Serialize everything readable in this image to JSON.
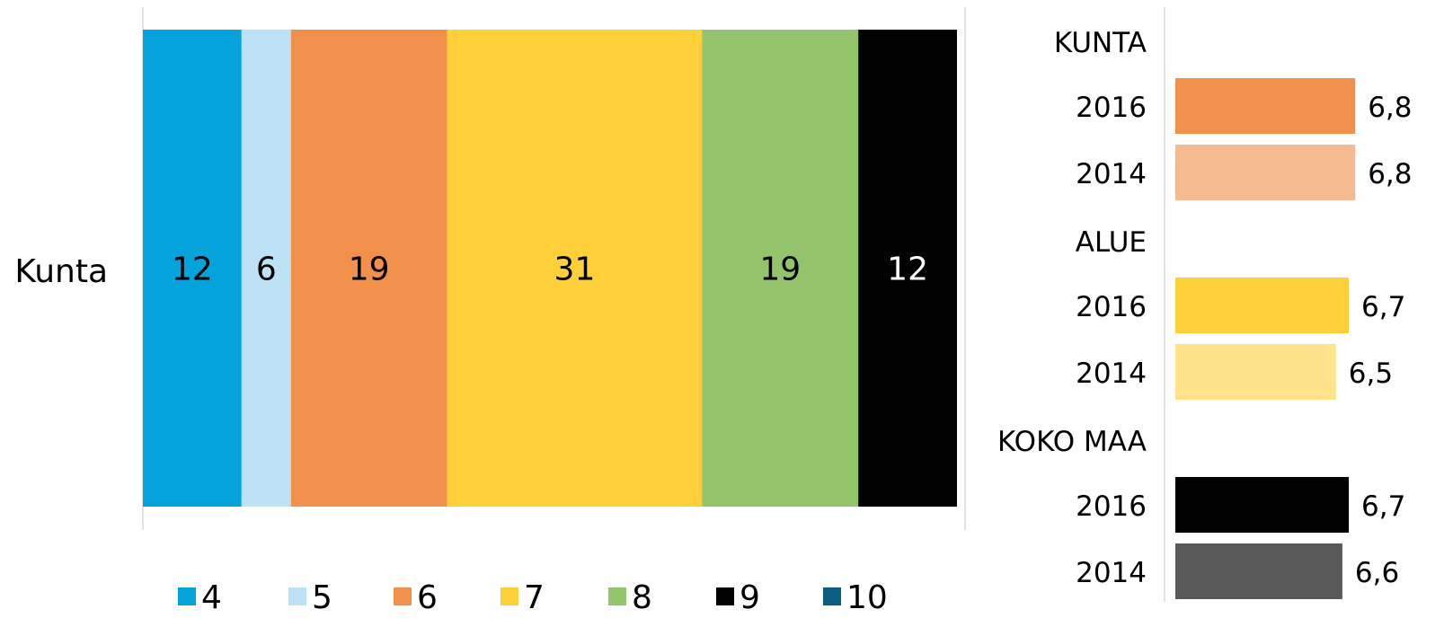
{
  "chart_data": [
    {
      "type": "bar",
      "orientation": "horizontal",
      "stacked": true,
      "categories": [
        "Kunta"
      ],
      "series": [
        {
          "name": "4",
          "values": [
            12
          ],
          "color": "#05A3DB"
        },
        {
          "name": "5",
          "values": [
            6
          ],
          "color": "#BEE2F5"
        },
        {
          "name": "6",
          "values": [
            19
          ],
          "color": "#F0904A"
        },
        {
          "name": "7",
          "values": [
            31
          ],
          "color": "#FDD03A"
        },
        {
          "name": "8",
          "values": [
            19
          ],
          "color": "#93C36B"
        },
        {
          "name": "9",
          "values": [
            12
          ],
          "color": "#000000"
        },
        {
          "name": "10",
          "values": [
            0
          ],
          "color": "#0A6083"
        }
      ],
      "xlim": [
        0,
        100
      ],
      "legend_position": "bottom",
      "grid": false
    },
    {
      "type": "bar",
      "orientation": "horizontal",
      "groups": [
        {
          "label": "KUNTA",
          "bars": [
            {
              "label": "2016",
              "value": 6.8,
              "display": "6,8",
              "color": "#F0904A"
            },
            {
              "label": "2014",
              "value": 6.8,
              "display": "6,8",
              "color": "#F6BA91"
            }
          ]
        },
        {
          "label": "ALUE",
          "bars": [
            {
              "label": "2016",
              "value": 6.7,
              "display": "6,7",
              "color": "#FDD03A"
            },
            {
              "label": "2014",
              "value": 6.5,
              "display": "6,5",
              "color": "#FFE28A"
            }
          ]
        },
        {
          "label": "KOKO MAA",
          "bars": [
            {
              "label": "2016",
              "value": 6.7,
              "display": "6,7",
              "color": "#000000"
            },
            {
              "label": "2014",
              "value": 6.6,
              "display": "6,6",
              "color": "#595959"
            }
          ]
        }
      ],
      "xlim": [
        4,
        10
      ],
      "grid": false
    }
  ]
}
